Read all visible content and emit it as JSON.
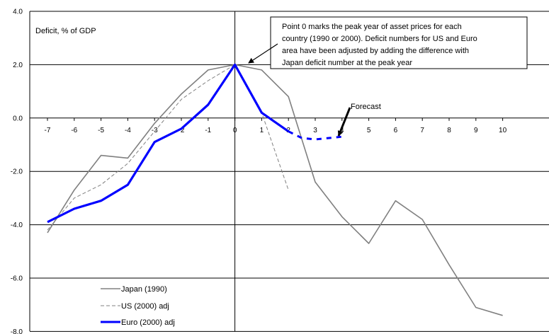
{
  "chart_data": {
    "type": "line",
    "ylabel": "Deficit, % of GDP",
    "xlabel": "",
    "x": [
      -7,
      -6,
      -5,
      -4,
      -3,
      -2,
      -1,
      0,
      1,
      2,
      3,
      4,
      5,
      6,
      7,
      8,
      9,
      10
    ],
    "x_ticks": [
      "-7",
      "-6",
      "-5",
      "-4",
      "-3",
      "-2",
      "-1",
      "0",
      "1",
      "2",
      "3",
      "4",
      "5",
      "6",
      "7",
      "8",
      "9",
      "10"
    ],
    "y_ticks": [
      "4.0",
      "2.0",
      "0.0",
      "-2.0",
      "-4.0",
      "-6.0",
      "-8.0"
    ],
    "ylim": [
      -8,
      4
    ],
    "xlim": [
      -7.5,
      10.5
    ],
    "grid": "horizontal",
    "legend_position": "bottom-left",
    "series": [
      {
        "name": "Japan (1990)",
        "color": "#808080",
        "style": "solid",
        "points": [
          [
            -7,
            -4.3
          ],
          [
            -6,
            -2.7
          ],
          [
            -5,
            -1.4
          ],
          [
            -4,
            -1.5
          ],
          [
            -3,
            -0.2
          ],
          [
            -2,
            0.9
          ],
          [
            -1,
            1.8
          ],
          [
            0,
            2.0
          ],
          [
            1,
            1.8
          ],
          [
            2,
            0.8
          ],
          [
            3,
            -2.4
          ],
          [
            4,
            -3.7
          ],
          [
            5,
            -4.7
          ],
          [
            6,
            -3.1
          ],
          [
            7,
            -3.8
          ],
          [
            8,
            -5.5
          ],
          [
            9,
            -7.1
          ],
          [
            10,
            -7.4
          ]
        ]
      },
      {
        "name": "US (2000) adj",
        "color": "#808080",
        "style": "dashed",
        "points": [
          [
            -7,
            -4.2
          ],
          [
            -6,
            -3.0
          ],
          [
            -5,
            -2.5
          ],
          [
            -4,
            -1.7
          ],
          [
            -3,
            -0.5
          ],
          [
            -2,
            0.7
          ],
          [
            -1,
            1.4
          ],
          [
            0,
            2.0
          ],
          [
            1,
            0.2
          ],
          [
            2,
            -2.7
          ]
        ]
      },
      {
        "name": "Euro (2000) adj",
        "color": "#0000ff",
        "style": "solid",
        "forecast_style": "dashed",
        "points": [
          [
            -7,
            -3.9
          ],
          [
            -6,
            -3.4
          ],
          [
            -5,
            -3.1
          ],
          [
            -4,
            -2.5
          ],
          [
            -3,
            -0.9
          ],
          [
            -2,
            -0.4
          ],
          [
            -1,
            0.5
          ],
          [
            0,
            2.0
          ],
          [
            1,
            0.2
          ],
          [
            2,
            -0.5
          ]
        ],
        "forecast_points": [
          [
            2,
            -0.5
          ],
          [
            2.5,
            -0.75
          ],
          [
            3,
            -0.8
          ],
          [
            4,
            -0.7
          ]
        ]
      }
    ],
    "annotations": [
      {
        "text_lines": [
          "Point 0 marks the peak year of asset prices for each",
          "country (1990 or 2000). Deficit numbers for US and Euro",
          "area have been adjusted by adding the difference with",
          "Japan deficit number at the peak year"
        ],
        "arrow_to": [
          0,
          2.0
        ]
      },
      {
        "text_lines": [
          "Forecast"
        ],
        "arrow_to": [
          3.3,
          -0.7
        ]
      }
    ]
  }
}
